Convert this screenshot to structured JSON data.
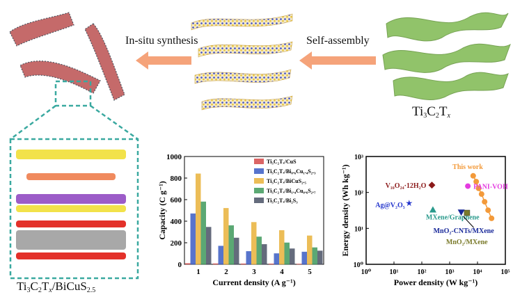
{
  "flow": {
    "step1_label": "In-situ synthesis",
    "step2_label": "Self-assembly",
    "mxene_formula": {
      "a": "Ti",
      "b": "3",
      "c": "C",
      "d": "2",
      "e": "T",
      "f": "x"
    },
    "product_formula": {
      "a": "Ti",
      "b": "3",
      "c": "C",
      "d": "2",
      "e": "T",
      "f": "x",
      "g": "/BiCuS",
      "h": "2.5"
    }
  },
  "colors": {
    "arrow": "#f5a37a",
    "teal_box": "#3aa9a0",
    "mxene_green": "#7fb35a",
    "red_fiber": "#c56a6a",
    "bi_yellow": "#f2e24a",
    "cu_orange": "#f08a5e",
    "s_purple": "#9c5cc8",
    "o_red": "#e3312a",
    "ti_gray": "#a8a8a8"
  },
  "chart_data": [
    {
      "type": "bar",
      "ylabel": "Capacity (C g⁻¹)",
      "xlabel": "Current density (A g⁻¹)",
      "categories": [
        "1",
        "2",
        "3",
        "4",
        "5"
      ],
      "ylim": [
        0,
        1000
      ],
      "yticks": [
        "0",
        "200",
        "400",
        "600",
        "800",
        "1000"
      ],
      "legend_position": "top-right",
      "series": [
        {
          "name": "Ti₃C₂Tₓ/CuS",
          "color": "#d54a4a",
          "values": [
            8,
            6,
            5,
            4,
            3
          ]
        },
        {
          "name": "Ti₃C₂Tₓ/Bi₀.₆Cu₁.₄S₂.₃",
          "color": "#3a5cc4",
          "values": [
            470,
            170,
            120,
            100,
            115
          ]
        },
        {
          "name": "Ti₃C₂Tₓ/BiCuS₂.₅",
          "color": "#e9b23a",
          "values": [
            840,
            520,
            390,
            315,
            265
          ]
        },
        {
          "name": "Ti₃C₂Tₓ/Bi₁.₄Cu₀.₆S₂.₇",
          "color": "#3f9a5c",
          "values": [
            580,
            360,
            255,
            200,
            155
          ]
        },
        {
          "name": "Ti₃C₂Tₓ/Bi₂S₃",
          "color": "#4a5266",
          "values": [
            345,
            245,
            185,
            145,
            125
          ]
        }
      ]
    },
    {
      "type": "scatter",
      "xlabel": "Power density (W kg⁻¹)",
      "ylabel": "Energy density (Wh kg⁻¹)",
      "xscale": "log",
      "yscale": "log",
      "xlim": [
        1,
        100000
      ],
      "ylim": [
        1,
        1000
      ],
      "xticks": [
        "10⁰",
        "10¹",
        "10²",
        "10³",
        "10⁴",
        "10⁵"
      ],
      "yticks": [
        "10⁰",
        "10¹",
        "10²",
        "10³"
      ],
      "series": [
        {
          "name": "This work",
          "color": "#f39a3a",
          "marker": "circle",
          "connected": true,
          "x": [
            7000,
            9000,
            11000,
            14000,
            18000,
            24000,
            32000
          ],
          "y": [
            290,
            200,
            130,
            90,
            55,
            32,
            19
          ]
        },
        {
          "name": "V₁₀O₂₄·12H₂O",
          "color": "#8b1a1a",
          "marker": "diamond",
          "x": [
            230
          ],
          "y": [
            160
          ]
        },
        {
          "name": "PANI-VOH",
          "color": "#e43be0",
          "marker": "circle",
          "x": [
            4500
          ],
          "y": [
            150
          ]
        },
        {
          "name": "Ag@V₂O₅",
          "color": "#2233cc",
          "marker": "star",
          "x": [
            35
          ],
          "y": [
            50
          ]
        },
        {
          "name": "MXene/Graphene",
          "color": "#2a9a8c",
          "marker": "triangle",
          "x": [
            250
          ],
          "y": [
            33
          ]
        },
        {
          "name": "MnO₂-CNTs/MXene",
          "color": "#1a2a9a",
          "marker": "triangle-down",
          "x": [
            2600
          ],
          "y": [
            28
          ]
        },
        {
          "name": "MnO₂/MXene",
          "color": "#7a7a2a",
          "marker": "square",
          "x": [
            4200
          ],
          "y": [
            27
          ]
        }
      ]
    }
  ]
}
